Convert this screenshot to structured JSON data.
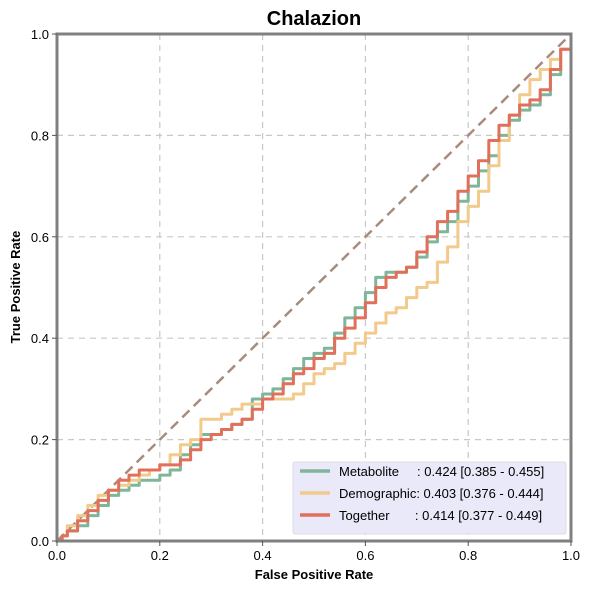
{
  "chart_data": {
    "type": "line",
    "title": "Chalazion",
    "xlabel": "False Positive Rate",
    "ylabel": "True Positive Rate",
    "xlim": [
      0,
      1
    ],
    "ylim": [
      0,
      1
    ],
    "grid": true,
    "legend_position": "bottom-right",
    "x_ticks": [
      "0.0",
      "0.2",
      "0.4",
      "0.6",
      "0.8",
      "1.0"
    ],
    "y_ticks": [
      "0.0",
      "0.2",
      "0.4",
      "0.6",
      "0.8",
      "1.0"
    ],
    "diagonal": {
      "from": [
        0,
        0
      ],
      "to": [
        1,
        1
      ],
      "color": "#a98b7c",
      "style": "dashed"
    },
    "series": [
      {
        "name": "Metabolite",
        "legend_label": "Metabolite     : 0.424 [0.385 - 0.455]",
        "color": "#7fb69a",
        "x": [
          0.0,
          0.01,
          0.02,
          0.04,
          0.06,
          0.08,
          0.1,
          0.12,
          0.14,
          0.16,
          0.18,
          0.2,
          0.22,
          0.24,
          0.26,
          0.28,
          0.3,
          0.32,
          0.34,
          0.36,
          0.38,
          0.4,
          0.42,
          0.44,
          0.46,
          0.48,
          0.5,
          0.52,
          0.54,
          0.56,
          0.58,
          0.6,
          0.62,
          0.64,
          0.66,
          0.68,
          0.7,
          0.72,
          0.74,
          0.76,
          0.78,
          0.8,
          0.82,
          0.84,
          0.86,
          0.88,
          0.9,
          0.92,
          0.94,
          0.96,
          0.98,
          1.0
        ],
        "y": [
          0.0,
          0.01,
          0.02,
          0.03,
          0.05,
          0.07,
          0.09,
          0.1,
          0.11,
          0.12,
          0.12,
          0.13,
          0.14,
          0.17,
          0.19,
          0.21,
          0.21,
          0.22,
          0.23,
          0.24,
          0.28,
          0.29,
          0.3,
          0.32,
          0.34,
          0.36,
          0.37,
          0.38,
          0.41,
          0.44,
          0.46,
          0.49,
          0.52,
          0.53,
          0.53,
          0.54,
          0.56,
          0.59,
          0.61,
          0.63,
          0.67,
          0.7,
          0.73,
          0.76,
          0.8,
          0.83,
          0.85,
          0.86,
          0.88,
          0.92,
          0.97,
          1.0
        ]
      },
      {
        "name": "Demographic",
        "legend_label": "Demographic: 0.403 [0.376 - 0.444]",
        "color": "#f2ca8c",
        "x": [
          0.0,
          0.01,
          0.02,
          0.04,
          0.06,
          0.08,
          0.1,
          0.12,
          0.14,
          0.16,
          0.18,
          0.2,
          0.22,
          0.24,
          0.26,
          0.28,
          0.3,
          0.32,
          0.34,
          0.36,
          0.38,
          0.4,
          0.42,
          0.44,
          0.46,
          0.48,
          0.5,
          0.52,
          0.54,
          0.56,
          0.58,
          0.6,
          0.62,
          0.64,
          0.66,
          0.68,
          0.7,
          0.72,
          0.74,
          0.76,
          0.78,
          0.8,
          0.82,
          0.84,
          0.86,
          0.88,
          0.9,
          0.92,
          0.94,
          0.96,
          0.98,
          1.0
        ],
        "y": [
          0.0,
          0.01,
          0.03,
          0.05,
          0.07,
          0.09,
          0.1,
          0.11,
          0.12,
          0.13,
          0.14,
          0.15,
          0.17,
          0.19,
          0.2,
          0.24,
          0.24,
          0.25,
          0.26,
          0.27,
          0.27,
          0.28,
          0.28,
          0.28,
          0.29,
          0.31,
          0.33,
          0.34,
          0.35,
          0.37,
          0.39,
          0.41,
          0.43,
          0.45,
          0.46,
          0.48,
          0.5,
          0.51,
          0.55,
          0.58,
          0.63,
          0.66,
          0.69,
          0.74,
          0.79,
          0.84,
          0.88,
          0.91,
          0.93,
          0.95,
          0.97,
          1.0
        ]
      },
      {
        "name": "Together",
        "legend_label": "Together       : 0.414 [0.377 - 0.449]",
        "color": "#e0705a",
        "x": [
          0.0,
          0.01,
          0.02,
          0.04,
          0.06,
          0.08,
          0.1,
          0.12,
          0.14,
          0.16,
          0.18,
          0.2,
          0.22,
          0.24,
          0.26,
          0.28,
          0.3,
          0.32,
          0.34,
          0.36,
          0.38,
          0.4,
          0.42,
          0.44,
          0.46,
          0.48,
          0.5,
          0.52,
          0.54,
          0.56,
          0.58,
          0.6,
          0.62,
          0.64,
          0.66,
          0.68,
          0.7,
          0.72,
          0.74,
          0.76,
          0.78,
          0.8,
          0.82,
          0.84,
          0.86,
          0.88,
          0.9,
          0.92,
          0.94,
          0.96,
          0.98,
          1.0
        ],
        "y": [
          0.0,
          0.01,
          0.02,
          0.04,
          0.06,
          0.08,
          0.1,
          0.12,
          0.13,
          0.14,
          0.14,
          0.15,
          0.15,
          0.16,
          0.18,
          0.2,
          0.21,
          0.22,
          0.23,
          0.24,
          0.26,
          0.28,
          0.29,
          0.31,
          0.33,
          0.34,
          0.36,
          0.37,
          0.4,
          0.42,
          0.44,
          0.47,
          0.5,
          0.52,
          0.53,
          0.54,
          0.57,
          0.6,
          0.63,
          0.65,
          0.69,
          0.72,
          0.75,
          0.79,
          0.82,
          0.84,
          0.86,
          0.87,
          0.89,
          0.93,
          0.97,
          1.0
        ]
      }
    ]
  }
}
